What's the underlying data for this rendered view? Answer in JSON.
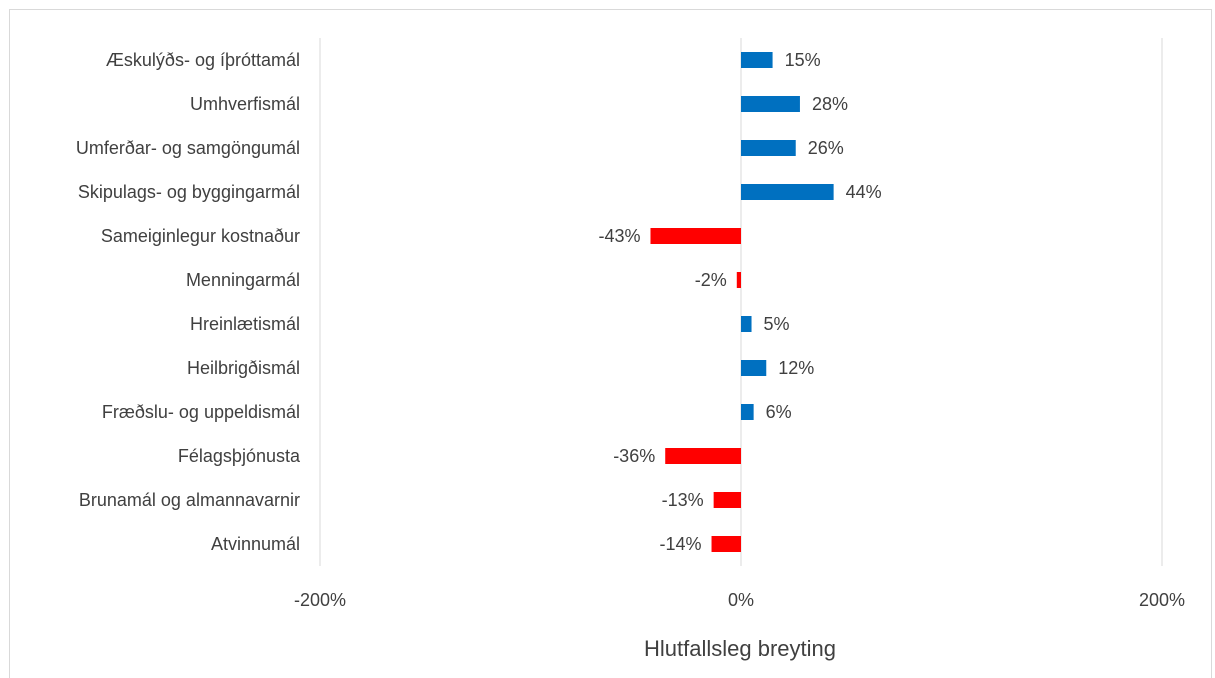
{
  "chart_data": {
    "type": "bar",
    "orientation": "horizontal",
    "categories": [
      "Æskulýðs- og íþróttamál",
      "Umhverfismál",
      "Umferðar- og samgöngumál",
      "Skipulags- og byggingarmál",
      "Sameiginlegur kostnaður",
      "Menningarmál",
      "Hreinlætismál",
      "Heilbrigðismál",
      "Fræðslu- og uppeldismál",
      "Félagsþjónusta",
      "Brunamál og almannavarnir",
      "Atvinnumál"
    ],
    "values": [
      15,
      28,
      26,
      44,
      -43,
      -2,
      5,
      12,
      6,
      -36,
      -13,
      -14
    ],
    "data_labels": [
      "15%",
      "28%",
      "26%",
      "44%",
      "-43%",
      "-2%",
      "5%",
      "12%",
      "6%",
      "-36%",
      "-13%",
      "-14%"
    ],
    "xlabel": "Hlutfallsleg breyting",
    "xlim": [
      -200,
      200
    ],
    "x_ticks": [
      -200,
      0,
      200
    ],
    "x_tick_labels": [
      "-200%",
      "0%",
      "200%"
    ],
    "grid": false,
    "colors": {
      "positive": "#0070c0",
      "negative": "#ff0000",
      "axis": "#d9d9d9",
      "text": "#404040"
    }
  }
}
